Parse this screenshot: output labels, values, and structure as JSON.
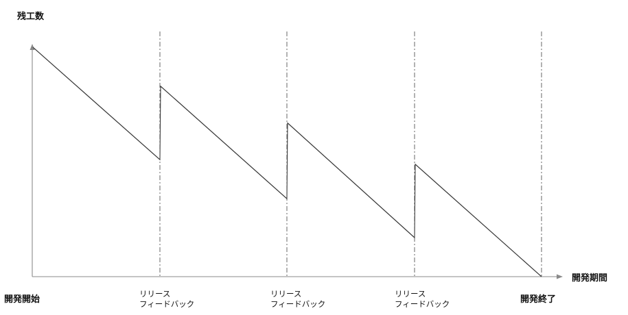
{
  "y_axis_label": "残工数",
  "x_axis_label": "開発期間",
  "start_label": "開発開始",
  "end_label": "開発終了",
  "release_label_line1": "リリース",
  "release_label_line2": "フィードバック",
  "chart_data": {
    "type": "line",
    "ylabel": "残工数",
    "xlabel": "開発期間",
    "releases": 3,
    "remaining_work_series": [
      {
        "segment": 1,
        "start": 100,
        "end": 51
      },
      {
        "segment": 2,
        "start": 83,
        "end": 34
      },
      {
        "segment": 3,
        "start": 67,
        "end": 17
      },
      {
        "segment": 4,
        "start": 49,
        "end": 0
      }
    ],
    "x_ticks": [
      "開発開始",
      "リリース フィードバック",
      "リリース フィードバック",
      "リリース フィードバック",
      "開発終了"
    ]
  }
}
